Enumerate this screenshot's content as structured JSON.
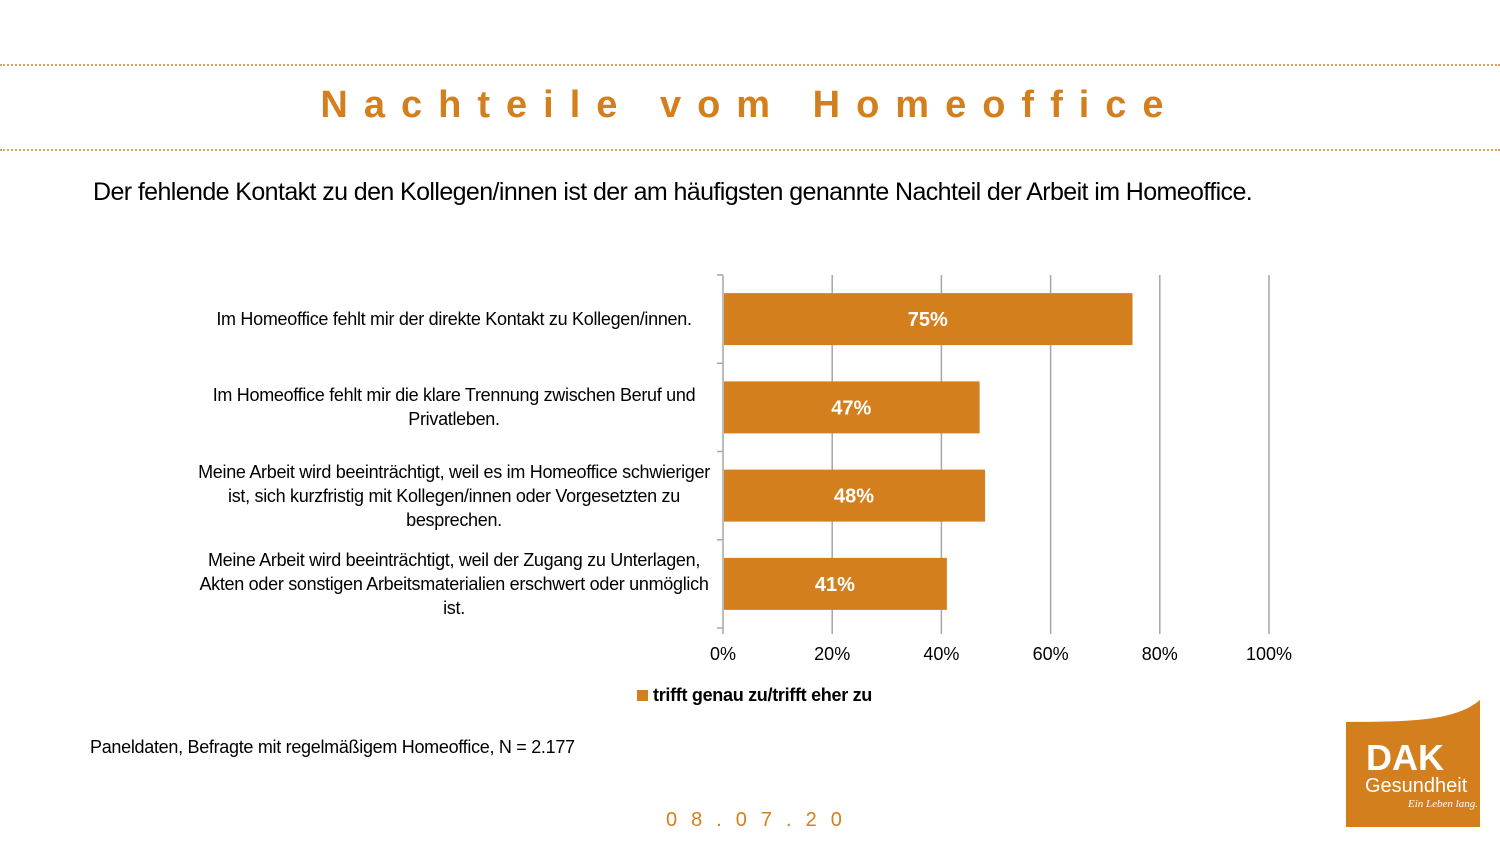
{
  "header": {
    "title": "Nachteile vom Homeoffice",
    "subtitle": "Der fehlende Kontakt zu den Kollegen/innen ist der am häufigsten genannte Nachteil der Arbeit im Homeoffice."
  },
  "chart_data": {
    "type": "bar",
    "orientation": "horizontal",
    "categories": [
      "Im Homeoffice fehlt mir der direkte Kontakt zu Kollegen/innen.",
      "Im Homeoffice fehlt mir die klare Trennung zwischen Beruf und Privatleben.",
      "Meine Arbeit wird beeinträchtigt, weil es im Homeoffice schwieriger ist, sich kurzfristig mit Kollegen/innen oder Vorgesetzten zu besprechen.",
      "Meine Arbeit wird beeinträchtigt, weil der Zugang zu Unterlagen, Akten oder sonstigen Arbeitsmaterialien erschwert oder unmöglich ist."
    ],
    "category_lines": [
      [
        "Im Homeoffice fehlt mir der direkte Kontakt zu Kollegen/innen."
      ],
      [
        "Im Homeoffice fehlt mir die klare Trennung zwischen Beruf und",
        "Privatleben."
      ],
      [
        "Meine Arbeit wird beeinträchtigt, weil es im Homeoffice schwieriger",
        "ist, sich kurzfristig mit Kollegen/innen oder Vorgesetzten zu",
        "besprechen."
      ],
      [
        "Meine Arbeit wird beeinträchtigt, weil der Zugang zu Unterlagen,",
        "Akten oder sonstigen Arbeitsmaterialien erschwert oder unmöglich",
        "ist."
      ]
    ],
    "series": [
      {
        "name": "trifft genau zu/trifft eher zu",
        "values": [
          75,
          47,
          48,
          41
        ],
        "data_labels": [
          "75%",
          "47%",
          "48%",
          "41%"
        ],
        "color": "#d47f1e"
      }
    ],
    "xlim": [
      0,
      100
    ],
    "x_ticks": [
      "0%",
      "20%",
      "40%",
      "60%",
      "80%",
      "100%"
    ],
    "grid": true,
    "legend": "bottom"
  },
  "footnote": "Paneldaten, Befragte mit regelmäßigem Homeoffice, N = 2.177",
  "date": "08.07.20",
  "logo": {
    "brand": "DAK",
    "name": "Gesundheit",
    "slogan": "Ein Leben lang.",
    "color": "#d47f1e"
  },
  "colors": {
    "accent": "#d47f1e",
    "grid": "#a6a6a6"
  }
}
